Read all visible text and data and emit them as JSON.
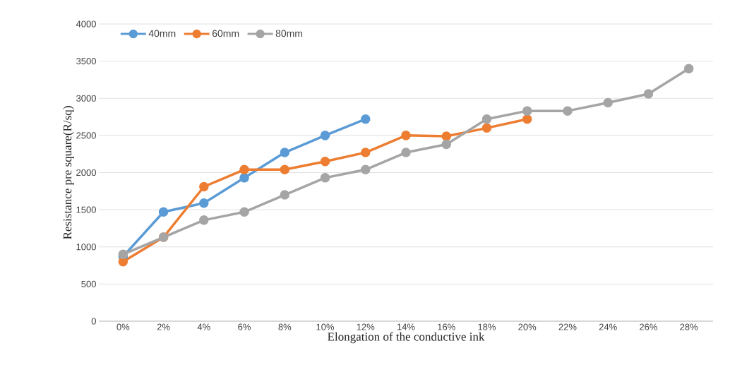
{
  "chart_data": {
    "type": "line",
    "xlabel": "Elongation of the conductive ink",
    "ylabel": "Resistance pre square(R/sq)",
    "categories": [
      "0%",
      "2%",
      "4%",
      "6%",
      "8%",
      "10%",
      "12%",
      "14%",
      "16%",
      "18%",
      "20%",
      "22%",
      "24%",
      "26%",
      "28%"
    ],
    "series": [
      {
        "name": "40mm",
        "color": "#5b9bd5",
        "values": [
          870,
          1470,
          1590,
          1930,
          2270,
          2500,
          2720,
          null,
          null,
          null,
          null,
          null,
          null,
          null,
          null
        ]
      },
      {
        "name": "60mm",
        "color": "#ed7d31",
        "values": [
          800,
          1130,
          1810,
          2040,
          2040,
          2150,
          2270,
          2500,
          2490,
          2600,
          2720,
          null,
          null,
          null,
          null
        ]
      },
      {
        "name": "80mm",
        "color": "#a5a5a5",
        "values": [
          900,
          1130,
          1360,
          1470,
          1700,
          1930,
          2040,
          2270,
          2380,
          2720,
          2830,
          2830,
          2940,
          3060,
          3400
        ]
      }
    ],
    "ylim": [
      0,
      4000
    ],
    "yticks": [
      0,
      500,
      1000,
      1500,
      2000,
      2500,
      3000,
      3500,
      4000
    ],
    "grid": "y",
    "legend": "top left",
    "marker": "circle",
    "line_style": "solid"
  }
}
